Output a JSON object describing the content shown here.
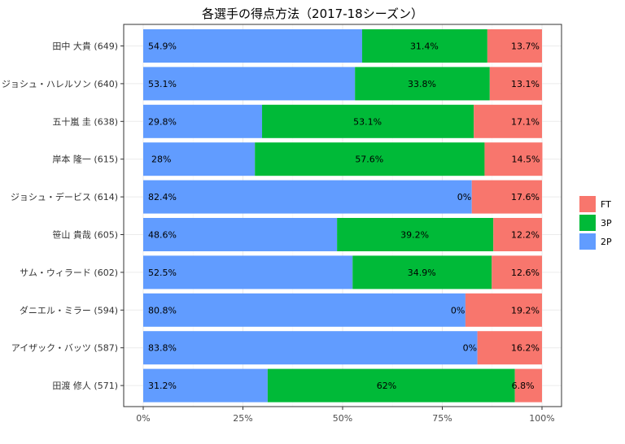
{
  "chart_data": {
    "type": "bar",
    "orientation": "horizontal",
    "stacked": "percent",
    "title": "各選手の得点方法（2017-18シーズン）",
    "xlabel": "",
    "ylabel": "",
    "xlim": [
      0,
      100
    ],
    "x_ticks": [
      "0%",
      "25%",
      "50%",
      "75%",
      "100%"
    ],
    "grid": true,
    "legend_position": "right",
    "categories": [
      "田中 大貴 (649)",
      "ジョシュ・ハレルソン (640)",
      "五十嵐 圭 (638)",
      "岸本 隆一 (615)",
      "ジョシュ・デービス (614)",
      "笹山 貴哉 (605)",
      "サム・ウィラード (602)",
      "ダニエル・ミラー (594)",
      "アイザック・バッツ (587)",
      "田渡 修人 (571)"
    ],
    "series": [
      {
        "name": "2P",
        "color": "#619CFF",
        "values": [
          54.9,
          53.1,
          29.8,
          28,
          82.4,
          48.6,
          52.5,
          80.8,
          83.8,
          31.2
        ],
        "labels": [
          "54.9%",
          "53.1%",
          "29.8%",
          "28%",
          "82.4%",
          "48.6%",
          "52.5%",
          "80.8%",
          "83.8%",
          "31.2%"
        ]
      },
      {
        "name": "3P",
        "color": "#00BA38",
        "values": [
          31.4,
          33.8,
          53.1,
          57.6,
          0,
          39.2,
          34.9,
          0,
          0,
          62
        ],
        "labels": [
          "31.4%",
          "33.8%",
          "53.1%",
          "57.6%",
          "0%",
          "39.2%",
          "34.9%",
          "0%",
          "0%",
          "62%"
        ]
      },
      {
        "name": "FT",
        "color": "#F8766D",
        "values": [
          13.7,
          13.1,
          17.1,
          14.5,
          17.6,
          12.2,
          12.6,
          19.2,
          16.2,
          6.8
        ],
        "labels": [
          "13.7%",
          "13.1%",
          "17.1%",
          "14.5%",
          "17.6%",
          "12.2%",
          "12.6%",
          "19.2%",
          "16.2%",
          "6.8%"
        ]
      }
    ],
    "legend_order": [
      "FT",
      "3P",
      "2P"
    ]
  }
}
